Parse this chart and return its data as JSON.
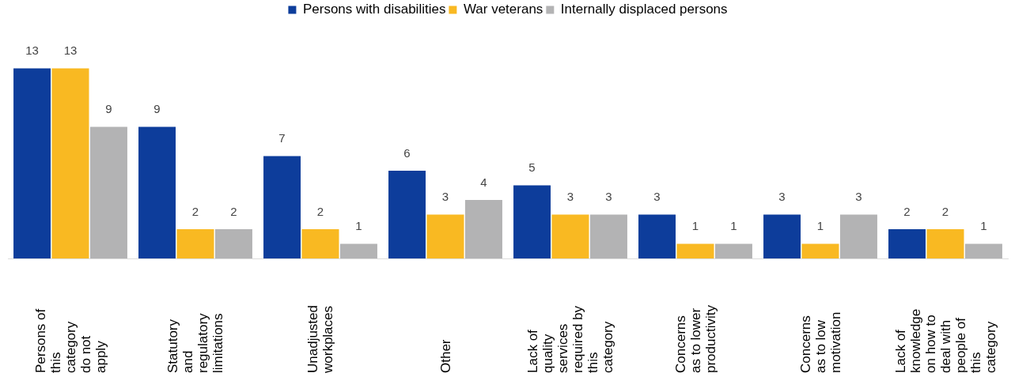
{
  "chart_data": {
    "type": "bar",
    "categories": [
      "Persons of\nthis\ncategory\ndo not\napply",
      "Statutory\nand\nregulatory\nlimitations",
      "Unadjusted\nworkplaces",
      "Other",
      "Lack of\nquality\nservices\nrequired by\nthis\ncategory",
      "Concerns\nas to lower\nproductivity",
      "Concerns\nas to low\nmotivation",
      "Lack of\nknowledge\non how to\ndeal with\npeople of\nthis\ncategory"
    ],
    "series": [
      {
        "name": "Persons with disabilities",
        "color": "#0d3d9b",
        "values": [
          13,
          9,
          7,
          6,
          5,
          3,
          3,
          2
        ]
      },
      {
        "name": "War veterans",
        "color": "#f9b922",
        "values": [
          13,
          2,
          2,
          3,
          3,
          1,
          1,
          2
        ]
      },
      {
        "name": "Internally displaced persons",
        "color": "#b3b3b4",
        "values": [
          9,
          2,
          1,
          4,
          3,
          1,
          3,
          1
        ]
      }
    ],
    "data_labels": true,
    "legend": "top",
    "grid": false
  }
}
